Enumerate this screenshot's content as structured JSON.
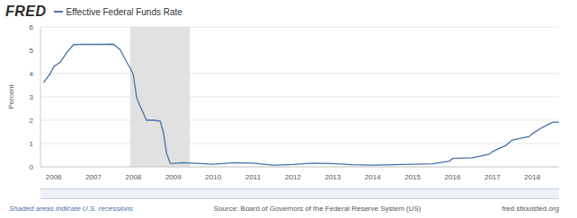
{
  "chart_data": {
    "type": "line",
    "logo": "FRED",
    "y_label": "Percent",
    "recession_note": "Shaded areas indicate U.S. recessions",
    "source": "Source: Board of Governors of the Federal Reserve System (US)",
    "site": "fred.stlouisfed.org",
    "legend": "top-left",
    "grid": true,
    "x": [
      2005.75,
      2005.92,
      2006.0,
      2006.17,
      2006.33,
      2006.5,
      2006.75,
      2007.0,
      2007.25,
      2007.5,
      2007.67,
      2007.83,
      2007.92,
      2008.0,
      2008.08,
      2008.17,
      2008.33,
      2008.5,
      2008.67,
      2008.75,
      2008.83,
      2008.92,
      2009.0,
      2009.25,
      2009.5,
      2010.0,
      2010.5,
      2011.0,
      2011.5,
      2012.0,
      2012.5,
      2013.0,
      2013.5,
      2014.0,
      2014.5,
      2015.0,
      2015.5,
      2015.92,
      2016.0,
      2016.5,
      2016.92,
      2017.0,
      2017.17,
      2017.33,
      2017.5,
      2017.92,
      2018.0,
      2018.25,
      2018.5,
      2018.67
    ],
    "series": [
      {
        "name": "Effective Federal Funds Rate",
        "color": "#4572a7",
        "values": [
          3.62,
          4.0,
          4.29,
          4.5,
          4.9,
          5.24,
          5.25,
          5.25,
          5.25,
          5.26,
          5.02,
          4.5,
          4.24,
          3.94,
          2.98,
          2.6,
          2.0,
          2.0,
          1.97,
          1.5,
          0.6,
          0.16,
          0.15,
          0.18,
          0.16,
          0.11,
          0.18,
          0.16,
          0.07,
          0.1,
          0.16,
          0.14,
          0.09,
          0.07,
          0.09,
          0.11,
          0.13,
          0.24,
          0.36,
          0.39,
          0.54,
          0.65,
          0.79,
          0.91,
          1.15,
          1.3,
          1.42,
          1.69,
          1.91,
          1.92
        ]
      }
    ],
    "recessions": [
      {
        "start": 2007.92,
        "end": 2009.42
      }
    ],
    "xlim": [
      2005.67,
      2018.67
    ],
    "xticks": [
      2006,
      2007,
      2008,
      2009,
      2010,
      2011,
      2012,
      2013,
      2014,
      2015,
      2016,
      2017,
      2018
    ],
    "ylim": [
      0,
      6
    ],
    "yticks": [
      0,
      1,
      2,
      3,
      4,
      5,
      6
    ]
  }
}
